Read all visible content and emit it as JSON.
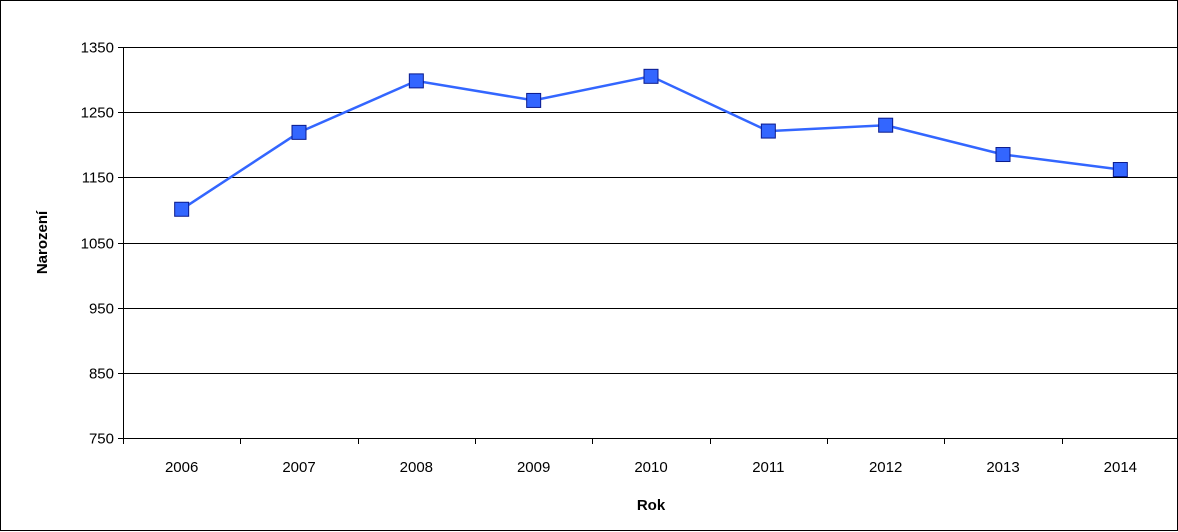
{
  "chart_data": {
    "type": "line",
    "title": "",
    "xlabel": "Rok",
    "ylabel": "Narození",
    "categories": [
      "2006",
      "2007",
      "2008",
      "2009",
      "2010",
      "2011",
      "2012",
      "2013",
      "2014"
    ],
    "series": [
      {
        "values": [
          1101,
          1219,
          1298,
          1268,
          1305,
          1221,
          1230,
          1185,
          1162
        ],
        "color": "#3366ff",
        "marker": "square"
      }
    ],
    "ylim": [
      750,
      1350
    ],
    "yticks": [
      750,
      850,
      950,
      1050,
      1150,
      1250,
      1350
    ],
    "grid": true,
    "legend": "none"
  }
}
